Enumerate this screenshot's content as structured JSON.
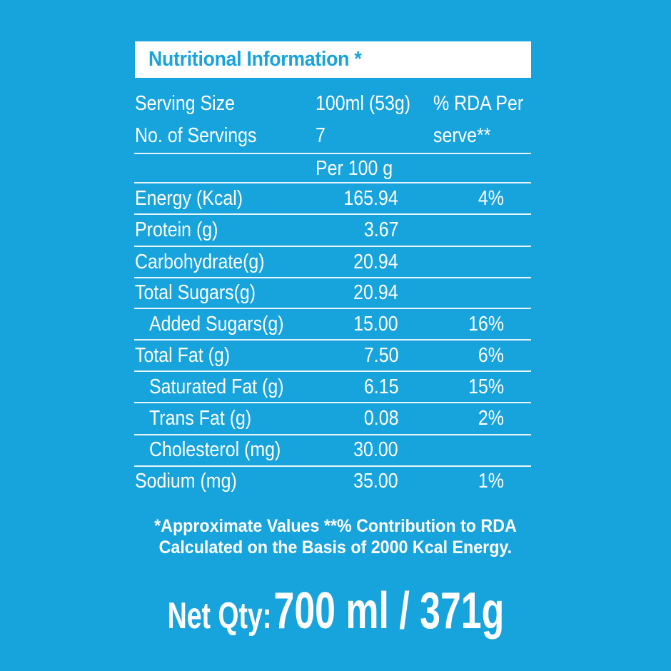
{
  "header": {
    "title": "Nutritional Information *"
  },
  "serving": {
    "size_label": "Serving Size",
    "size_value": "100ml (53g)",
    "count_label": "No. of Servings",
    "count_value": "7",
    "rda_header_line1": "% RDA Per",
    "rda_header_line2": "serve**"
  },
  "table": {
    "column_header": "Per 100 g",
    "rows": [
      {
        "label": "Energy (Kcal)",
        "value": "165.94",
        "rda": "4%",
        "indent": false
      },
      {
        "label": "Protein (g)",
        "value": "3.67",
        "rda": "",
        "indent": false
      },
      {
        "label": "Carbohydrate(g)",
        "value": "20.94",
        "rda": "",
        "indent": false
      },
      {
        "label": "Total Sugars(g)",
        "value": "20.94",
        "rda": "",
        "indent": false
      },
      {
        "label": "Added Sugars(g)",
        "value": "15.00",
        "rda": "16%",
        "indent": true
      },
      {
        "label": "Total Fat (g)",
        "value": "7.50",
        "rda": "6%",
        "indent": false
      },
      {
        "label": "Saturated Fat (g)",
        "value": "6.15",
        "rda": "15%",
        "indent": true
      },
      {
        "label": "Trans Fat (g)",
        "value": "0.08",
        "rda": "2%",
        "indent": true
      },
      {
        "label": "Cholesterol (mg)",
        "value": "30.00",
        "rda": "",
        "indent": true
      },
      {
        "label": "Sodium (mg)",
        "value": "35.00",
        "rda": "1%",
        "indent": false
      }
    ]
  },
  "footnote": {
    "line1": "*Approximate Values **% Contribution to RDA",
    "line2": "Calculated on the Basis of 2000 Kcal Energy."
  },
  "net_quantity": {
    "label": "Net Qty:",
    "value": "700 ml / 371g"
  },
  "colors": {
    "background": "#17a3dc",
    "title_box": "#ffffff",
    "title_text": "#17a3dc",
    "text": "#ffffff"
  }
}
